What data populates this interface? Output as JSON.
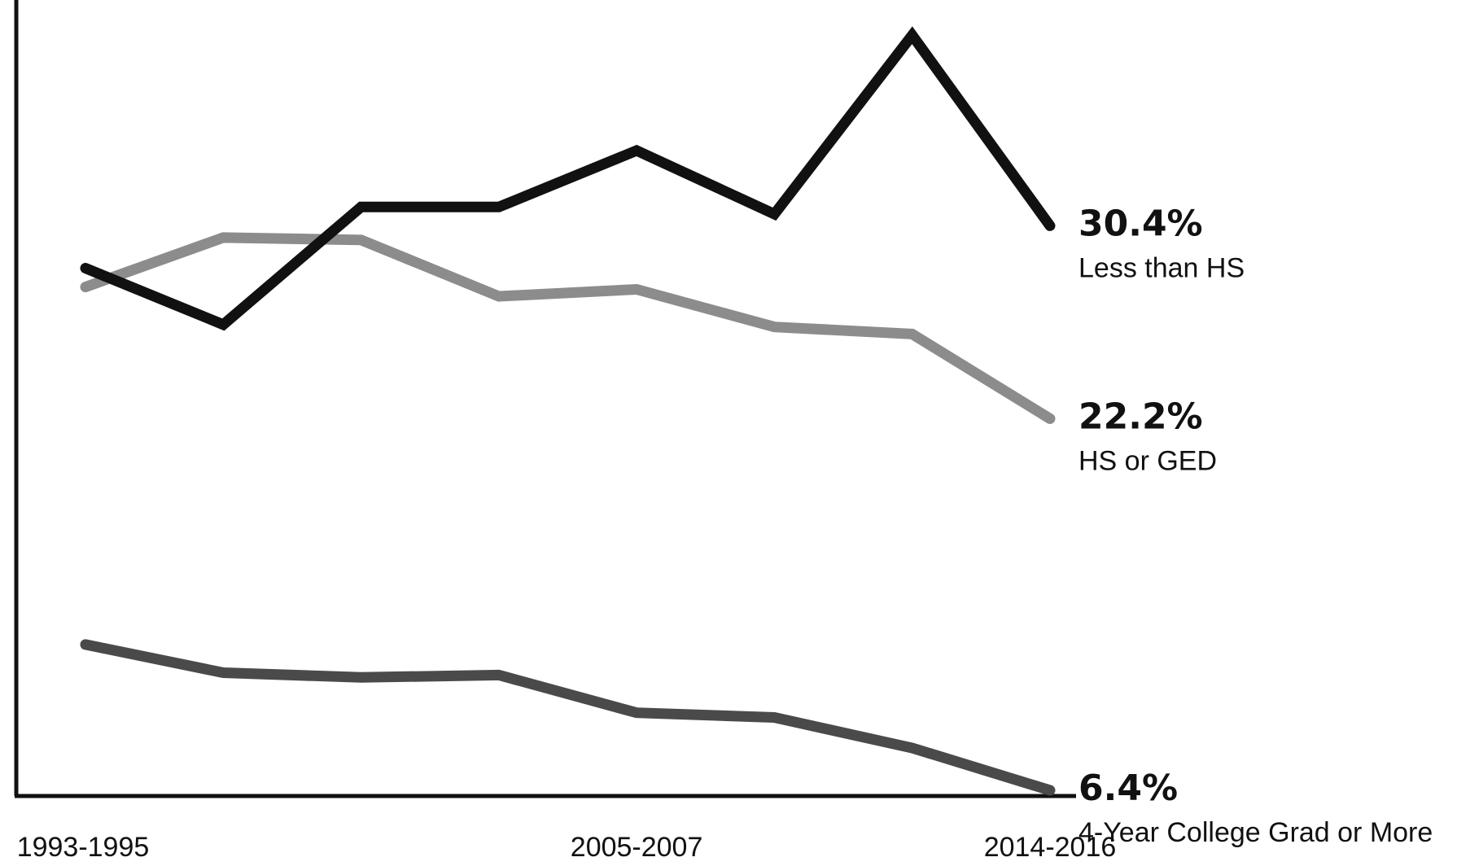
{
  "chart_data": {
    "type": "line",
    "title": "",
    "xlabel": "",
    "ylabel": "",
    "x": [
      "1993-1995",
      "",
      "",
      "",
      "2005-2007",
      "",
      "",
      "2014-2016"
    ],
    "x_tick_labels": [
      "1993-1995",
      "2005-2007",
      "2014-2016"
    ],
    "ylim": [
      0,
      40
    ],
    "grid": false,
    "legend": "direct labels at right end of lines",
    "series": [
      {
        "name": "Less than HS",
        "end_label": "30.4%",
        "color": "#111111",
        "values": [
          28.6,
          26.2,
          31.2,
          31.2,
          33.6,
          30.9,
          38.5,
          30.4
        ]
      },
      {
        "name": "HS or GED",
        "end_label": "22.2%",
        "color": "#8c8c8c",
        "values": [
          27.8,
          29.9,
          29.8,
          27.4,
          27.7,
          26.1,
          25.8,
          22.2
        ]
      },
      {
        "name": "4-Year College Grad or More",
        "end_label": "6.4%",
        "color": "#4a4a4a",
        "values": [
          12.6,
          11.4,
          11.2,
          11.3,
          9.7,
          9.5,
          8.2,
          6.4
        ]
      }
    ]
  }
}
